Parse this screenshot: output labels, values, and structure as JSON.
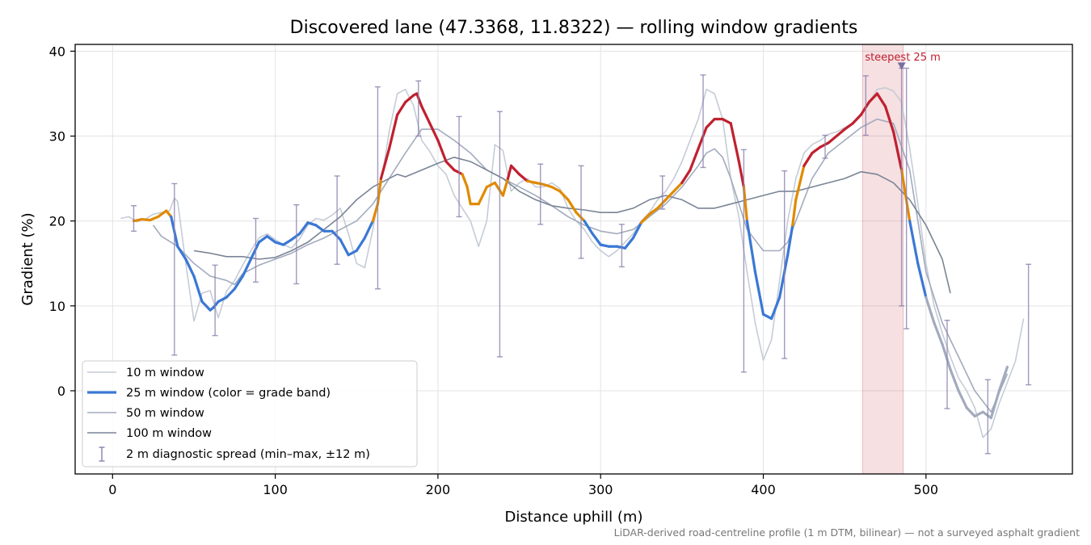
{
  "chart_data": {
    "type": "line",
    "title": "Discovered lane (47.3368, 11.8322) — rolling window gradients",
    "xlabel": "Distance uphill (m)",
    "ylabel": "Gradient (%)",
    "xlim": [
      -23,
      590
    ],
    "ylim": [
      -9.8,
      40.8
    ],
    "xticks": [
      0,
      100,
      200,
      300,
      400,
      500
    ],
    "yticks": [
      0,
      10,
      20,
      30,
      40
    ],
    "grid": true,
    "legend_position": "lower-left",
    "footnote": "LiDAR-derived road-centreline profile (1 m DTM, bilinear) — not a surveyed asphalt gradient",
    "highlight": {
      "x_range": [
        461,
        486
      ],
      "label": "steepest 25 m",
      "marker": [
        485,
        38.2
      ],
      "color": "#c0202f"
    },
    "grade_bands": [
      {
        "max": 20,
        "color": "#3a78d4"
      },
      {
        "max": 25,
        "color": "#e08a00"
      },
      {
        "max": 100,
        "color": "#c0202f"
      }
    ],
    "series": [
      {
        "name": "10 m window",
        "color": "#c5ccd6",
        "x": [
          5,
          10,
          15,
          20,
          25,
          30,
          35,
          38,
          40,
          45,
          50,
          55,
          60,
          65,
          70,
          75,
          80,
          85,
          90,
          95,
          100,
          105,
          110,
          115,
          120,
          125,
          130,
          135,
          140,
          145,
          150,
          155,
          160,
          165,
          170,
          175,
          180,
          185,
          190,
          195,
          200,
          205,
          210,
          215,
          220,
          225,
          230,
          235,
          240,
          245,
          250,
          255,
          260,
          265,
          270,
          275,
          280,
          285,
          290,
          295,
          300,
          305,
          310,
          315,
          320,
          325,
          330,
          335,
          340,
          345,
          350,
          355,
          360,
          365,
          370,
          375,
          380,
          385,
          390,
          395,
          400,
          405,
          410,
          415,
          420,
          425,
          430,
          435,
          440,
          445,
          450,
          455,
          460,
          465,
          470,
          475,
          480,
          485,
          490,
          495,
          500,
          505,
          510,
          515,
          520,
          525,
          530,
          535,
          540,
          545,
          550,
          555,
          560
        ],
        "y": [
          20.3,
          20.5,
          19.9,
          20.2,
          20.8,
          21.0,
          21.2,
          22.7,
          22.3,
          15.0,
          8.2,
          11.5,
          11.8,
          8.6,
          11.7,
          13.0,
          14.8,
          16.5,
          18.0,
          18.5,
          17.8,
          17.2,
          16.8,
          17.9,
          19.5,
          20.3,
          20.1,
          20.7,
          21.5,
          18.5,
          15.0,
          14.5,
          19.0,
          24.5,
          30.5,
          35.0,
          35.5,
          33.6,
          29.5,
          28.2,
          26.5,
          25.5,
          23.0,
          21.5,
          20.0,
          17.0,
          20.0,
          29.0,
          28.3,
          23.5,
          24.5,
          25.0,
          24.0,
          24.0,
          24.5,
          23.8,
          21.5,
          20.0,
          19.0,
          17.5,
          16.5,
          15.8,
          16.5,
          17.5,
          18.5,
          20.0,
          21.0,
          22.5,
          23.5,
          25.0,
          27.0,
          29.5,
          32.0,
          35.5,
          35.0,
          32.0,
          25.0,
          20.5,
          14.0,
          8.0,
          3.6,
          6.0,
          13.0,
          20.0,
          25.0,
          28.0,
          29.0,
          29.5,
          30.2,
          30.5,
          31.0,
          31.5,
          32.5,
          34.0,
          35.5,
          35.7,
          35.3,
          34.0,
          28.5,
          22.0,
          15.0,
          10.0,
          6.8,
          4.0,
          1.5,
          0.0,
          -2.0,
          -5.5,
          -4.5,
          -1.5,
          1.0,
          3.5,
          8.5
        ]
      },
      {
        "name": "25 m window (color = grade band)",
        "color": "#3a78d4",
        "x": [
          13,
          18,
          23,
          28,
          33,
          36,
          40,
          45,
          50,
          55,
          60,
          62,
          65,
          70,
          75,
          80,
          85,
          90,
          95,
          100,
          105,
          110,
          115,
          120,
          125,
          130,
          135,
          140,
          145,
          150,
          155,
          160,
          163,
          165,
          170,
          175,
          180,
          185,
          187,
          190,
          195,
          200,
          205,
          210,
          215,
          218,
          220,
          225,
          230,
          235,
          240,
          243,
          245,
          250,
          255,
          260,
          265,
          270,
          275,
          280,
          285,
          290,
          295,
          300,
          305,
          310,
          315,
          320,
          325,
          330,
          335,
          340,
          345,
          350,
          355,
          360,
          365,
          370,
          375,
          380,
          385,
          388,
          390,
          395,
          400,
          405,
          410,
          415,
          418,
          420,
          425,
          430,
          435,
          440,
          445,
          450,
          455,
          460,
          465,
          470,
          475,
          480,
          485,
          490,
          495,
          500,
          505,
          510,
          515,
          520,
          525,
          530,
          535,
          540,
          545,
          550
        ],
        "y": [
          20.0,
          20.2,
          20.1,
          20.5,
          21.2,
          20.5,
          17.0,
          15.5,
          13.5,
          10.5,
          9.5,
          9.8,
          10.5,
          11.0,
          12.0,
          13.5,
          15.5,
          17.5,
          18.2,
          17.5,
          17.2,
          17.8,
          18.5,
          19.8,
          19.5,
          18.8,
          18.8,
          17.8,
          16.0,
          16.5,
          18.0,
          20.0,
          22.0,
          25.0,
          28.5,
          32.5,
          34.0,
          34.8,
          35.0,
          33.5,
          31.5,
          29.5,
          27.0,
          26.0,
          25.5,
          24.0,
          22.0,
          22.0,
          24.0,
          24.5,
          23.0,
          25.0,
          26.5,
          25.5,
          24.7,
          24.5,
          24.3,
          24.0,
          23.5,
          22.5,
          21.0,
          20.0,
          18.5,
          17.2,
          17.0,
          17.0,
          16.8,
          18.0,
          19.8,
          20.8,
          21.5,
          22.5,
          23.5,
          24.5,
          26.0,
          28.5,
          31.0,
          32.0,
          32.0,
          31.5,
          27.0,
          24.0,
          20.0,
          14.0,
          9.0,
          8.5,
          11.0,
          16.0,
          19.5,
          22.5,
          26.5,
          28.0,
          28.7,
          29.2,
          30.0,
          30.8,
          31.5,
          32.5,
          34.0,
          35.0,
          33.5,
          30.5,
          26.0,
          20.0,
          15.0,
          11.0,
          8.0,
          5.5,
          2.5,
          0.0,
          -2.0,
          -3.0,
          -2.5,
          -3.2,
          0.0,
          2.8
        ]
      },
      {
        "name": "50 m window",
        "color": "#a2abbd",
        "x": [
          25,
          30,
          40,
          50,
          60,
          70,
          75,
          80,
          90,
          100,
          110,
          120,
          130,
          140,
          150,
          160,
          170,
          180,
          190,
          200,
          210,
          220,
          230,
          240,
          250,
          260,
          270,
          280,
          290,
          300,
          310,
          320,
          330,
          340,
          350,
          360,
          365,
          370,
          375,
          380,
          390,
          400,
          410,
          415,
          420,
          430,
          440,
          450,
          460,
          470,
          480,
          490,
          500,
          510,
          520,
          530,
          540,
          550
        ],
        "y": [
          19.5,
          18.2,
          17.0,
          15.0,
          13.5,
          13.0,
          12.5,
          13.8,
          14.8,
          15.5,
          16.2,
          17.2,
          18.0,
          19.0,
          20.0,
          22.0,
          25.0,
          28.0,
          30.8,
          30.8,
          29.5,
          28.0,
          26.0,
          25.0,
          24.0,
          23.0,
          21.8,
          20.5,
          19.5,
          18.8,
          18.5,
          19.0,
          20.5,
          22.0,
          24.0,
          26.5,
          28.0,
          28.5,
          27.5,
          25.0,
          19.0,
          16.5,
          16.5,
          17.5,
          20.0,
          25.0,
          28.0,
          29.5,
          31.0,
          32.0,
          31.5,
          26.0,
          14.0,
          8.0,
          4.0,
          0.0,
          -2.5,
          2.0
        ]
      },
      {
        "name": "100 m window",
        "color": "#7a8496",
        "x": [
          50,
          60,
          70,
          80,
          90,
          100,
          110,
          120,
          130,
          140,
          150,
          160,
          170,
          175,
          180,
          190,
          200,
          210,
          220,
          230,
          240,
          250,
          260,
          270,
          280,
          290,
          300,
          310,
          320,
          330,
          340,
          350,
          360,
          370,
          380,
          390,
          400,
          410,
          420,
          430,
          440,
          450,
          460,
          470,
          480,
          490,
          500,
          510,
          515
        ],
        "y": [
          16.5,
          16.2,
          15.8,
          15.8,
          15.5,
          15.7,
          16.5,
          17.5,
          19.0,
          20.5,
          22.5,
          24.0,
          25.0,
          25.5,
          25.2,
          26.0,
          26.8,
          27.5,
          27.0,
          26.0,
          25.0,
          23.5,
          22.5,
          21.8,
          21.5,
          21.3,
          21.0,
          21.0,
          21.5,
          22.5,
          23.0,
          22.5,
          21.5,
          21.5,
          22.0,
          22.5,
          23.0,
          23.5,
          23.5,
          24.0,
          24.5,
          25.0,
          25.8,
          25.5,
          24.5,
          22.5,
          19.5,
          15.5,
          11.5
        ]
      }
    ],
    "error_bars": {
      "name": "2 m diagnostic spread (min–max, ±12 m)",
      "color": "#8a80ad",
      "points": [
        {
          "x": 13,
          "y": 20.2,
          "low": 18.8,
          "high": 21.8
        },
        {
          "x": 38,
          "y": 20.0,
          "low": 4.2,
          "high": 24.4
        },
        {
          "x": 63,
          "y": 10.5,
          "low": 6.5,
          "high": 14.8
        },
        {
          "x": 88,
          "y": 16.0,
          "low": 12.8,
          "high": 20.3
        },
        {
          "x": 113,
          "y": 18.0,
          "low": 12.6,
          "high": 21.9
        },
        {
          "x": 138,
          "y": 19.0,
          "low": 14.9,
          "high": 25.3
        },
        {
          "x": 163,
          "y": 24.0,
          "low": 12.0,
          "high": 35.8
        },
        {
          "x": 188,
          "y": 33.0,
          "low": 30.0,
          "high": 36.5
        },
        {
          "x": 213,
          "y": 26.0,
          "low": 20.5,
          "high": 32.3
        },
        {
          "x": 238,
          "y": 22.0,
          "low": 4.0,
          "high": 32.9
        },
        {
          "x": 263,
          "y": 23.0,
          "low": 19.6,
          "high": 26.7
        },
        {
          "x": 288,
          "y": 21.0,
          "low": 15.6,
          "high": 26.5
        },
        {
          "x": 313,
          "y": 17.0,
          "low": 14.6,
          "high": 19.6
        },
        {
          "x": 338,
          "y": 23.0,
          "low": 21.4,
          "high": 25.3
        },
        {
          "x": 363,
          "y": 30.0,
          "low": 26.3,
          "high": 37.2
        },
        {
          "x": 388,
          "y": 20.0,
          "low": 2.2,
          "high": 28.4
        },
        {
          "x": 413,
          "y": 15.0,
          "low": 3.8,
          "high": 25.9
        },
        {
          "x": 438,
          "y": 28.5,
          "low": 27.4,
          "high": 30.1
        },
        {
          "x": 463,
          "y": 32.0,
          "low": 30.1,
          "high": 37.1
        },
        {
          "x": 485,
          "y": 26.0,
          "low": 10.0,
          "high": 38.0
        },
        {
          "x": 488,
          "y": 24.0,
          "low": 7.3,
          "high": 38.0
        },
        {
          "x": 513,
          "y": 4.0,
          "low": -2.1,
          "high": 8.3
        },
        {
          "x": 538,
          "y": -2.8,
          "low": -7.4,
          "high": 1.3
        },
        {
          "x": 563,
          "y": 7.0,
          "low": 0.7,
          "high": 14.9
        }
      ]
    }
  }
}
